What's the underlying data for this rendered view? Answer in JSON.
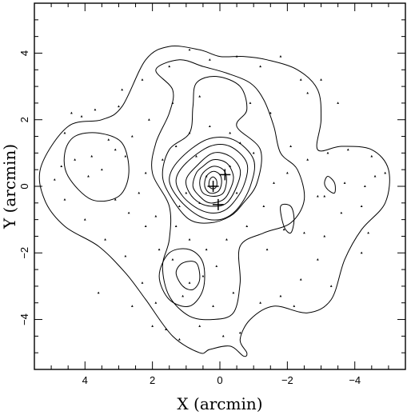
{
  "chart_data": {
    "type": "scatter",
    "subtype": "contour map with galaxy positions",
    "xlabel": "X (arcmin)",
    "ylabel": "Y (arcmin)",
    "xlim": [
      5.5,
      -5.5
    ],
    "ylim": [
      -5.5,
      5.5
    ],
    "x_ticks": [
      4,
      2,
      0,
      -2,
      -4
    ],
    "y_ticks": [
      4,
      2,
      0,
      -2,
      -4
    ],
    "x_tick_labels": [
      "4",
      "2",
      "0",
      "−2",
      "−4"
    ],
    "y_tick_labels": [
      "4",
      "2",
      "0",
      "−2",
      "−4"
    ],
    "grid": false,
    "legend": "none",
    "crosses": [
      {
        "x": 0.2,
        "y": 0.0
      },
      {
        "x": -0.15,
        "y": 0.35
      },
      {
        "x": 0.05,
        "y": -0.55
      }
    ],
    "contours": [
      {
        "level": 1,
        "points": [
          [
            4.5,
            1.8
          ],
          [
            3.5,
            2.0
          ],
          [
            2.9,
            2.4
          ],
          [
            2.2,
            3.8
          ],
          [
            1.5,
            4.2
          ],
          [
            0.6,
            4.1
          ],
          [
            0.0,
            3.9
          ],
          [
            -0.7,
            3.9
          ],
          [
            -1.4,
            3.8
          ],
          [
            -2.3,
            3.5
          ],
          [
            -2.9,
            2.9
          ],
          [
            -3.0,
            2.0
          ],
          [
            -2.9,
            1.1
          ],
          [
            -3.6,
            1.2
          ],
          [
            -4.5,
            1.1
          ],
          [
            -5.0,
            0.5
          ],
          [
            -4.9,
            -0.5
          ],
          [
            -4.2,
            -1.3
          ],
          [
            -3.7,
            -2.2
          ],
          [
            -3.3,
            -3.4
          ],
          [
            -2.6,
            -3.8
          ],
          [
            -1.6,
            -3.6
          ],
          [
            -0.9,
            -4.0
          ],
          [
            -0.6,
            -4.6
          ],
          [
            -0.8,
            -5.0
          ],
          [
            -0.7,
            -5.1
          ],
          [
            -0.3,
            -4.8
          ],
          [
            0.3,
            -4.9
          ],
          [
            0.6,
            -5.0
          ],
          [
            1.4,
            -4.5
          ],
          [
            2.2,
            -3.4
          ],
          [
            2.8,
            -2.6
          ],
          [
            3.6,
            -1.8
          ],
          [
            4.6,
            -1.2
          ],
          [
            5.2,
            -0.4
          ],
          [
            5.3,
            0.6
          ]
        ]
      },
      {
        "level": 2,
        "points": [
          [
            1.9,
            3.5
          ],
          [
            1.2,
            3.8
          ],
          [
            0.5,
            3.6
          ],
          [
            -0.2,
            3.4
          ],
          [
            -0.9,
            3.1
          ],
          [
            -1.3,
            2.6
          ],
          [
            -1.6,
            1.8
          ],
          [
            -1.8,
            1.0
          ],
          [
            -2.3,
            0.5
          ],
          [
            -2.5,
            -0.4
          ],
          [
            -2.1,
            -1.1
          ],
          [
            -1.3,
            -1.4
          ],
          [
            -0.6,
            -1.8
          ],
          [
            -0.6,
            -2.9
          ],
          [
            -0.4,
            -3.8
          ],
          [
            0.2,
            -4.0
          ],
          [
            0.9,
            -3.9
          ],
          [
            1.5,
            -3.3
          ],
          [
            1.7,
            -2.4
          ],
          [
            1.5,
            -1.6
          ],
          [
            1.5,
            -0.6
          ],
          [
            2.0,
            0.4
          ],
          [
            1.9,
            1.3
          ],
          [
            1.5,
            2.2
          ],
          [
            1.4,
            2.9
          ]
        ]
      },
      {
        "level": 2,
        "points": [
          [
            4.3,
            1.5
          ],
          [
            3.6,
            1.6
          ],
          [
            2.9,
            1.3
          ],
          [
            2.7,
            0.4
          ],
          [
            3.0,
            -0.3
          ],
          [
            3.8,
            -0.4
          ],
          [
            4.5,
            0.3
          ],
          [
            4.6,
            1.0
          ]
        ]
      },
      {
        "level": 3,
        "points": [
          [
            0.7,
            3.1
          ],
          [
            0.1,
            3.3
          ],
          [
            -0.6,
            3.0
          ],
          [
            -0.8,
            2.3
          ],
          [
            -0.5,
            1.8
          ],
          [
            -1.2,
            1.1
          ],
          [
            -1.1,
            0.1
          ],
          [
            -0.7,
            -0.5
          ],
          [
            -0.3,
            -0.9
          ],
          [
            0.3,
            -1.1
          ],
          [
            0.9,
            -1.0
          ],
          [
            1.4,
            -0.4
          ],
          [
            1.7,
            0.3
          ],
          [
            1.5,
            1.1
          ],
          [
            0.9,
            1.6
          ],
          [
            0.8,
            2.4
          ]
        ]
      },
      {
        "level": 3,
        "points": [
          [
            1.5,
            -2.0
          ],
          [
            0.9,
            -1.9
          ],
          [
            0.5,
            -2.3
          ],
          [
            0.5,
            -3.1
          ],
          [
            0.9,
            -3.6
          ],
          [
            1.5,
            -3.4
          ],
          [
            1.8,
            -2.7
          ]
        ]
      },
      {
        "level": 3,
        "points": [
          [
            -1.8,
            -0.6
          ],
          [
            -2.1,
            -0.6
          ],
          [
            -2.2,
            -1.0
          ],
          [
            -2.1,
            -1.4
          ],
          [
            -1.9,
            -1.2
          ]
        ]
      },
      {
        "level": 3,
        "points": [
          [
            -3.2,
            0.3
          ],
          [
            -3.4,
            0.1
          ],
          [
            -3.4,
            -0.2
          ],
          [
            -3.2,
            -0.1
          ],
          [
            -3.1,
            0.1
          ]
        ]
      },
      {
        "level": 4,
        "points": [
          [
            0.4,
            1.4
          ],
          [
            -0.4,
            1.4
          ],
          [
            -1.0,
            0.8
          ],
          [
            -0.9,
            0.0
          ],
          [
            -0.5,
            -0.7
          ],
          [
            0.0,
            -1.0
          ],
          [
            0.6,
            -0.9
          ],
          [
            1.2,
            -0.4
          ],
          [
            1.5,
            0.2
          ],
          [
            1.2,
            0.8
          ]
        ]
      },
      {
        "level": 4,
        "points": [
          [
            1.1,
            -2.3
          ],
          [
            0.7,
            -2.3
          ],
          [
            0.6,
            -2.8
          ],
          [
            0.8,
            -3.1
          ],
          [
            1.1,
            -3.0
          ],
          [
            1.3,
            -2.6
          ]
        ]
      },
      {
        "level": 5,
        "points": [
          [
            0.3,
            1.2
          ],
          [
            -0.3,
            1.2
          ],
          [
            -0.8,
            0.7
          ],
          [
            -0.7,
            0.0
          ],
          [
            -0.3,
            -0.6
          ],
          [
            0.1,
            -0.8
          ],
          [
            0.6,
            -0.7
          ],
          [
            1.1,
            -0.3
          ],
          [
            1.3,
            0.2
          ],
          [
            1.0,
            0.7
          ]
        ]
      },
      {
        "level": 6,
        "points": [
          [
            0.2,
            1.0
          ],
          [
            -0.3,
            0.9
          ],
          [
            -0.6,
            0.5
          ],
          [
            -0.5,
            0.0
          ],
          [
            -0.2,
            -0.5
          ],
          [
            0.2,
            -0.6
          ],
          [
            0.6,
            -0.5
          ],
          [
            0.9,
            -0.2
          ],
          [
            1.0,
            0.2
          ],
          [
            0.7,
            0.6
          ]
        ]
      },
      {
        "level": 7,
        "points": [
          [
            0.2,
            0.8
          ],
          [
            -0.2,
            0.7
          ],
          [
            -0.4,
            0.3
          ],
          [
            -0.3,
            -0.1
          ],
          [
            -0.1,
            -0.4
          ],
          [
            0.3,
            -0.5
          ],
          [
            0.6,
            -0.3
          ],
          [
            0.8,
            0.0
          ],
          [
            0.7,
            0.4
          ],
          [
            0.5,
            0.6
          ]
        ]
      },
      {
        "level": 8,
        "points": [
          [
            0.2,
            0.6
          ],
          [
            -0.1,
            0.5
          ],
          [
            -0.2,
            0.2
          ],
          [
            -0.1,
            -0.2
          ],
          [
            0.2,
            -0.3
          ],
          [
            0.5,
            -0.2
          ],
          [
            0.6,
            0.1
          ],
          [
            0.5,
            0.4
          ]
        ]
      },
      {
        "level": 9,
        "points": [
          [
            0.2,
            0.45
          ],
          [
            0.0,
            0.35
          ],
          [
            -0.05,
            0.1
          ],
          [
            0.05,
            -0.15
          ],
          [
            0.3,
            -0.2
          ],
          [
            0.45,
            0.0
          ],
          [
            0.4,
            0.3
          ]
        ]
      },
      {
        "level": 10,
        "points": [
          [
            0.2,
            0.28
          ],
          [
            0.1,
            0.18
          ],
          [
            0.1,
            0.0
          ],
          [
            0.2,
            -0.08
          ],
          [
            0.32,
            0.0
          ],
          [
            0.3,
            0.2
          ]
        ]
      }
    ],
    "galaxies": [
      [
        4.4,
        2.2
      ],
      [
        4.1,
        2.1
      ],
      [
        3.7,
        2.3
      ],
      [
        3.0,
        2.4
      ],
      [
        2.3,
        3.2
      ],
      [
        1.5,
        3.6
      ],
      [
        0.9,
        4.1
      ],
      [
        0.3,
        3.8
      ],
      [
        -0.5,
        3.9
      ],
      [
        -1.2,
        3.6
      ],
      [
        -1.8,
        3.9
      ],
      [
        -2.4,
        3.2
      ],
      [
        -2.6,
        2.8
      ],
      [
        -1.5,
        2.2
      ],
      [
        -0.9,
        2.5
      ],
      [
        0.6,
        2.7
      ],
      [
        1.4,
        2.5
      ],
      [
        2.1,
        2.0
      ],
      [
        2.6,
        1.5
      ],
      [
        3.1,
        1.1
      ],
      [
        3.8,
        0.9
      ],
      [
        4.3,
        0.8
      ],
      [
        4.7,
        0.6
      ],
      [
        4.9,
        0.2
      ],
      [
        4.6,
        -0.4
      ],
      [
        4.0,
        -1.0
      ],
      [
        3.4,
        -1.6
      ],
      [
        2.8,
        -2.1
      ],
      [
        2.3,
        -2.9
      ],
      [
        1.9,
        -3.5
      ],
      [
        1.6,
        -4.3
      ],
      [
        1.2,
        -4.6
      ],
      [
        0.6,
        -4.2
      ],
      [
        -0.1,
        -4.5
      ],
      [
        -0.6,
        -4.4
      ],
      [
        -1.2,
        -3.5
      ],
      [
        -1.8,
        -3.3
      ],
      [
        -2.4,
        -2.8
      ],
      [
        -2.9,
        -2.2
      ],
      [
        -3.1,
        -1.5
      ],
      [
        -3.6,
        -0.8
      ],
      [
        -4.2,
        -0.6
      ],
      [
        -4.6,
        0.3
      ],
      [
        -4.9,
        0.4
      ],
      [
        -4.5,
        0.9
      ],
      [
        -3.8,
        1.1
      ],
      [
        -3.2,
        1.0
      ],
      [
        -2.6,
        0.8
      ],
      [
        -2.0,
        0.4
      ],
      [
        -1.6,
        0.1
      ],
      [
        -1.3,
        -0.6
      ],
      [
        -1.9,
        -1.3
      ],
      [
        -2.5,
        -1.4
      ],
      [
        -2.9,
        -0.3
      ],
      [
        -3.7,
        0.1
      ],
      [
        -3.1,
        -0.3
      ],
      [
        -1.0,
        1.0
      ],
      [
        -0.6,
        1.3
      ],
      [
        -0.3,
        1.6
      ],
      [
        0.3,
        1.8
      ],
      [
        0.9,
        1.6
      ],
      [
        1.3,
        1.2
      ],
      [
        1.7,
        0.8
      ],
      [
        2.2,
        0.4
      ],
      [
        2.4,
        -0.2
      ],
      [
        1.9,
        -0.9
      ],
      [
        1.3,
        -1.2
      ],
      [
        0.9,
        -1.6
      ],
      [
        0.4,
        -1.9
      ],
      [
        0.1,
        -2.4
      ],
      [
        0.5,
        -2.7
      ],
      [
        0.9,
        -2.9
      ],
      [
        1.1,
        -3.3
      ],
      [
        1.4,
        -2.2
      ],
      [
        1.8,
        -1.9
      ],
      [
        2.2,
        -1.2
      ],
      [
        2.7,
        -0.8
      ],
      [
        3.1,
        -0.4
      ],
      [
        3.5,
        0.5
      ],
      [
        3.9,
        0.3
      ],
      [
        3.3,
        1.4
      ],
      [
        2.8,
        0.9
      ],
      [
        0.7,
        0.9
      ],
      [
        0.4,
        0.3
      ],
      [
        -0.3,
        0.6
      ],
      [
        -0.5,
        -0.2
      ],
      [
        0.6,
        -0.5
      ],
      [
        1.0,
        -0.2
      ],
      [
        -0.8,
        -1.2
      ],
      [
        -1.4,
        -1.9
      ],
      [
        -0.4,
        -3.2
      ],
      [
        0.2,
        -3.6
      ],
      [
        -2.2,
        -3.6
      ],
      [
        -3.3,
        -3.0
      ],
      [
        -4.2,
        -2.0
      ],
      [
        -4.4,
        -1.4
      ],
      [
        3.6,
        -3.2
      ],
      [
        2.6,
        -3.6
      ],
      [
        2.0,
        -4.2
      ],
      [
        -3.5,
        2.5
      ],
      [
        -3.0,
        3.2
      ],
      [
        -2.1,
        1.2
      ],
      [
        -4.3,
        0.0
      ],
      [
        4.6,
        1.6
      ],
      [
        2.9,
        2.9
      ],
      [
        1.2,
        -0.6
      ],
      [
        -0.2,
        -1.6
      ]
    ]
  }
}
